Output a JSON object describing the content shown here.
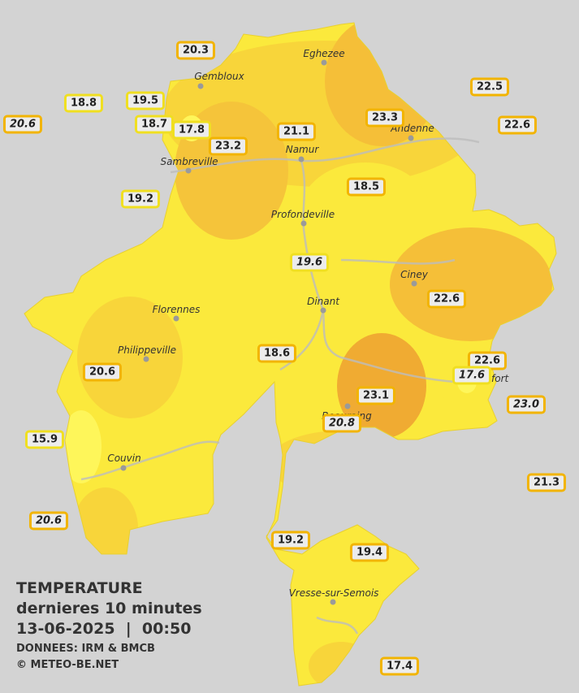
{
  "stations": [
    {
      "value": "20.3",
      "italic": false,
      "border": "#f2b400"
    },
    {
      "value": "18.8",
      "italic": false,
      "border": "#f0df20"
    },
    {
      "value": "19.5",
      "italic": false,
      "border": "#f0df20"
    },
    {
      "value": "20.6",
      "italic": true,
      "border": "#f2b400"
    },
    {
      "value": "18.7",
      "italic": false,
      "border": "#f0df20"
    },
    {
      "value": "17.8",
      "italic": false,
      "border": "#f0df20"
    },
    {
      "value": "23.2",
      "italic": false,
      "border": "#f2b400"
    },
    {
      "value": "21.1",
      "italic": false,
      "border": "#f2b400"
    },
    {
      "value": "23.3",
      "italic": false,
      "border": "#f2b400"
    },
    {
      "value": "22.5",
      "italic": false,
      "border": "#f2b400"
    },
    {
      "value": "22.6",
      "italic": false,
      "border": "#f2b400"
    },
    {
      "value": "19.2",
      "italic": false,
      "border": "#f0df20"
    },
    {
      "value": "18.5",
      "italic": false,
      "border": "#f2b400"
    },
    {
      "value": "19.6",
      "italic": true,
      "border": "#f0df20"
    },
    {
      "value": "22.6",
      "italic": false,
      "border": "#f2b400"
    },
    {
      "value": "18.6",
      "italic": false,
      "border": "#f2b400"
    },
    {
      "value": "20.6",
      "italic": false,
      "border": "#f2b400"
    },
    {
      "value": "22.6",
      "italic": false,
      "border": "#f2b400"
    },
    {
      "value": "17.6",
      "italic": true,
      "border": "#f0df20"
    },
    {
      "value": "23.1",
      "italic": false,
      "border": "#f2b400"
    },
    {
      "value": "23.0",
      "italic": true,
      "border": "#f2b400"
    },
    {
      "value": "20.8",
      "italic": true,
      "border": "#f2b400"
    },
    {
      "value": "15.9",
      "italic": false,
      "border": "#f0df20"
    },
    {
      "value": "21.3",
      "italic": false,
      "border": "#f2b400"
    },
    {
      "value": "20.6",
      "italic": true,
      "border": "#f2b400"
    },
    {
      "value": "19.2",
      "italic": false,
      "border": "#f2b400"
    },
    {
      "value": "19.4",
      "italic": false,
      "border": "#f2b400"
    },
    {
      "value": "17.4",
      "italic": false,
      "border": "#f2b400"
    }
  ],
  "cities": [
    "Eghezee",
    "Gembloux",
    "Andenne",
    "Namur",
    "Sambreville",
    "Profondeville",
    "Ciney",
    "Dinant",
    "Florennes",
    "Philippeville",
    "Rochefort",
    "Beauraing",
    "Couvin",
    "Vresse-sur-Semois"
  ],
  "legend": {
    "title": "TEMPERATURE",
    "subtitle": "dernieres 10 minutes",
    "datetime": "13-06-2025  |  00:50",
    "source": "DONNEES: IRM & BMCB",
    "copyright": "© METEO-BE.NET"
  }
}
